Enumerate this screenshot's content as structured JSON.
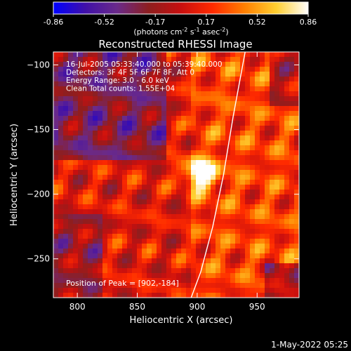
{
  "colors": {
    "background": "#000000",
    "text": "#ffffff",
    "limb": "#ffffff",
    "colormap": [
      "#0000ff",
      "#4010a8",
      "#6a2a8a",
      "#8e1e1e",
      "#c80f0f",
      "#ff2a00",
      "#ff7f00",
      "#ffcf30",
      "#ffffff"
    ]
  },
  "colorbar": {
    "ticks": [
      "-0.86",
      "-0.52",
      "-0.17",
      "0.17",
      "0.52",
      "0.86"
    ],
    "unit_prefix": "(photons cm",
    "unit_exp1": "-2",
    "unit_mid": " s",
    "unit_exp2": "-1",
    "unit_mid2": " asec",
    "unit_exp3": "-2",
    "unit_suffix": ")"
  },
  "chart_data": {
    "type": "heatmap",
    "title": "Reconstructed RHESSI Image",
    "xlabel": "Heliocentric X (arcsec)",
    "ylabel": "Heliocentric Y (arcsec)",
    "xlim": [
      780,
      985
    ],
    "ylim": [
      -280,
      -90
    ],
    "x_ticks": [
      800,
      850,
      900,
      950
    ],
    "y_ticks": [
      -100,
      -150,
      -200,
      -250
    ],
    "value_range": [
      -0.86,
      0.86
    ],
    "peak": [
      902,
      -184
    ],
    "info_lines": [
      "16-Jul-2005 05:33:40.000 to 05:39:40.000",
      "Detectors: 3F 4F 5F 6F 7F 8F, Att 0",
      "Energy Range: 3.0 - 6.0 keV",
      "Clean    Total counts: 1.55E+04"
    ],
    "peak_label": "Position of Peak = [902,-184]",
    "limb_points": [
      [
        940,
        -90
      ],
      [
        930,
        -140
      ],
      [
        922,
        -185
      ],
      [
        913,
        -225
      ],
      [
        903,
        -260
      ],
      [
        895,
        -280
      ]
    ]
  },
  "footer": {
    "timestamp": "1-May-2022 05:25"
  }
}
